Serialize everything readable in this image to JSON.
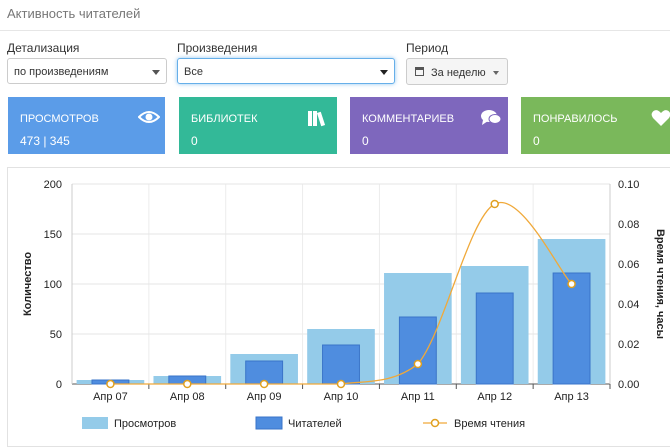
{
  "header": {
    "title": "Активность читателей"
  },
  "filters": {
    "detail": {
      "label": "Детализация",
      "value": "по произведениям"
    },
    "works": {
      "label": "Произведения",
      "value": "Все"
    },
    "period": {
      "label": "Период",
      "value": "За неделю"
    }
  },
  "cards": [
    {
      "label": "ПРОСМОТРОВ",
      "value": "473 | 345",
      "color": "#5b9ce8",
      "icon": "eye-icon"
    },
    {
      "label": "БИБЛИОТЕК",
      "value": "0",
      "color": "#33b998",
      "icon": "books-icon"
    },
    {
      "label": "КОММЕНТАРИЕВ",
      "value": "0",
      "color": "#7e67bd",
      "icon": "comments-icon"
    },
    {
      "label": "ПОНРАВИЛОСЬ",
      "value": "0",
      "color": "#7ab85b",
      "icon": "heart-icon"
    }
  ],
  "chart_data": {
    "type": "bar",
    "categories": [
      "Апр 07",
      "Апр 08",
      "Апр 09",
      "Апр 10",
      "Апр 11",
      "Апр 12",
      "Апр 13"
    ],
    "series": [
      {
        "name": "Просмотров",
        "type": "bar",
        "color": "#94cbe9",
        "values": [
          4,
          8,
          30,
          55,
          111,
          118,
          145
        ]
      },
      {
        "name": "Читателей",
        "type": "bar",
        "color": "#4f8ddf",
        "values": [
          4,
          8,
          23,
          39,
          67,
          91,
          111
        ]
      },
      {
        "name": "Время чтения",
        "type": "line",
        "axis": "right",
        "color": "#f0a93a",
        "values": [
          0,
          0,
          0,
          0,
          0.01,
          0.09,
          0.05
        ]
      }
    ],
    "ylabel": "Количество",
    "y2label": "Время чтения, часы",
    "ylim": [
      0,
      200
    ],
    "y2lim": [
      0,
      0.1
    ],
    "yticks": [
      "0",
      "50",
      "100",
      "150",
      "200"
    ],
    "y2ticks": [
      "0.00",
      "0.02",
      "0.04",
      "0.06",
      "0.08",
      "0.10"
    ],
    "grid": true,
    "legend": "bottom"
  }
}
